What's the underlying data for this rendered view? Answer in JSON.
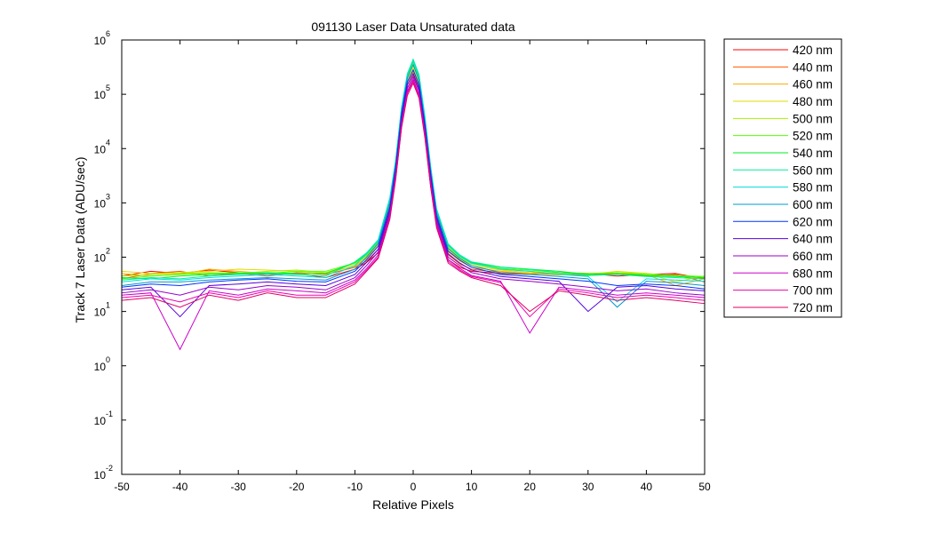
{
  "chart_data": {
    "type": "line",
    "title": "091130 Laser Data  Unsaturated data",
    "xlabel": "Relative Pixels",
    "ylabel": "Track 7 Laser Data (ADU/sec)",
    "xlim": [
      -50,
      50
    ],
    "ylim": [
      0.01,
      1000000
    ],
    "yscale": "log",
    "grid": false,
    "legend_position": "outside-right",
    "x_ticks": [
      "-50",
      "-40",
      "-30",
      "-20",
      "-10",
      "0",
      "10",
      "20",
      "30",
      "40",
      "50"
    ],
    "y_ticks": [
      {
        "base": "10",
        "exp": "-2"
      },
      {
        "base": "10",
        "exp": "-1"
      },
      {
        "base": "10",
        "exp": "0"
      },
      {
        "base": "10",
        "exp": "1"
      },
      {
        "base": "10",
        "exp": "2"
      },
      {
        "base": "10",
        "exp": "3"
      },
      {
        "base": "10",
        "exp": "4"
      },
      {
        "base": "10",
        "exp": "5"
      },
      {
        "base": "10",
        "exp": "6"
      }
    ],
    "x": [
      -50,
      -45,
      -40,
      -35,
      -30,
      -25,
      -20,
      -15,
      -10,
      -8,
      -6,
      -4,
      -3,
      -2,
      -1,
      0,
      1,
      2,
      3,
      4,
      6,
      8,
      10,
      15,
      20,
      25,
      30,
      35,
      40,
      45,
      50
    ],
    "series": [
      {
        "name": "420 nm",
        "color": "#ff0000",
        "values": [
          45,
          55,
          50,
          58,
          52,
          48,
          50,
          42,
          60,
          80,
          120,
          600,
          3000,
          25000,
          110000,
          180000,
          100000,
          18000,
          2000,
          400,
          90,
          65,
          55,
          50,
          48,
          52,
          50,
          45,
          48,
          50,
          40
        ]
      },
      {
        "name": "440 nm",
        "color": "#ff5500",
        "values": [
          40,
          50,
          55,
          45,
          50,
          45,
          52,
          48,
          65,
          85,
          140,
          700,
          3500,
          30000,
          130000,
          220000,
          120000,
          22000,
          2500,
          450,
          110,
          75,
          60,
          52,
          50,
          48,
          46,
          50,
          45,
          48,
          35
        ]
      },
      {
        "name": "460 nm",
        "color": "#ffaa00",
        "values": [
          50,
          45,
          48,
          60,
          55,
          50,
          48,
          52,
          68,
          95,
          160,
          800,
          4000,
          35000,
          150000,
          260000,
          140000,
          25000,
          3000,
          520,
          125,
          85,
          65,
          55,
          50,
          47,
          50,
          52,
          48,
          30,
          40
        ]
      },
      {
        "name": "480 nm",
        "color": "#dddd00",
        "values": [
          55,
          50,
          52,
          55,
          60,
          58,
          55,
          50,
          70,
          100,
          170,
          900,
          4500,
          40000,
          170000,
          300000,
          160000,
          28000,
          3400,
          580,
          140,
          90,
          70,
          58,
          52,
          50,
          48,
          55,
          50,
          35,
          45
        ]
      },
      {
        "name": "500 nm",
        "color": "#aaee00",
        "values": [
          45,
          48,
          50,
          52,
          50,
          55,
          58,
          52,
          75,
          105,
          180,
          1000,
          5000,
          45000,
          190000,
          340000,
          180000,
          32000,
          3800,
          640,
          150,
          95,
          75,
          60,
          55,
          50,
          48,
          52,
          50,
          45,
          42
        ]
      },
      {
        "name": "520 nm",
        "color": "#55ff00",
        "values": [
          40,
          45,
          48,
          50,
          52,
          50,
          55,
          55,
          78,
          110,
          190,
          1100,
          5500,
          50000,
          210000,
          380000,
          200000,
          35000,
          4200,
          700,
          160,
          100,
          78,
          62,
          58,
          52,
          50,
          50,
          48,
          46,
          44
        ]
      },
      {
        "name": "540 nm",
        "color": "#00ee22",
        "values": [
          42,
          40,
          45,
          48,
          50,
          52,
          50,
          50,
          80,
          115,
          200,
          1200,
          6000,
          55000,
          230000,
          420000,
          220000,
          38000,
          4500,
          760,
          170,
          105,
          80,
          65,
          60,
          55,
          48,
          50,
          46,
          44,
          42
        ]
      },
      {
        "name": "560 nm",
        "color": "#00ee99",
        "values": [
          38,
          42,
          40,
          45,
          48,
          50,
          48,
          45,
          82,
          120,
          210,
          1250,
          6200,
          58000,
          240000,
          440000,
          230000,
          40000,
          4700,
          790,
          175,
          110,
          82,
          66,
          60,
          52,
          46,
          48,
          44,
          42,
          40
        ]
      },
      {
        "name": "580 nm",
        "color": "#00dddd",
        "values": [
          35,
          40,
          38,
          42,
          45,
          48,
          45,
          42,
          70,
          115,
          200,
          1200,
          6000,
          55000,
          230000,
          410000,
          210000,
          37000,
          4400,
          750,
          165,
          105,
          78,
          60,
          55,
          48,
          44,
          15,
          40,
          38,
          36
        ]
      },
      {
        "name": "600 nm",
        "color": "#0099cc",
        "values": [
          30,
          35,
          35,
          38,
          40,
          42,
          40,
          38,
          60,
          100,
          180,
          1000,
          5200,
          48000,
          200000,
          350000,
          180000,
          32000,
          3900,
          660,
          145,
          95,
          70,
          52,
          48,
          44,
          40,
          12,
          36,
          34,
          30
        ]
      },
      {
        "name": "620 nm",
        "color": "#0033ff",
        "values": [
          28,
          32,
          30,
          35,
          38,
          40,
          36,
          35,
          55,
          90,
          160,
          850,
          4500,
          42000,
          170000,
          280000,
          150000,
          28000,
          3400,
          580,
          130,
          88,
          65,
          48,
          44,
          40,
          36,
          30,
          32,
          30,
          26
        ]
      },
      {
        "name": "640 nm",
        "color": "#5500dd",
        "values": [
          25,
          28,
          8,
          30,
          32,
          35,
          32,
          30,
          48,
          80,
          140,
          750,
          4000,
          36000,
          150000,
          240000,
          130000,
          24000,
          3000,
          520,
          115,
          78,
          58,
          44,
          40,
          36,
          10,
          28,
          30,
          26,
          24
        ]
      },
      {
        "name": "660 nm",
        "color": "#9900cc",
        "values": [
          22,
          25,
          20,
          28,
          25,
          30,
          28,
          25,
          42,
          70,
          125,
          650,
          3500,
          32000,
          130000,
          210000,
          115000,
          21000,
          2600,
          460,
          100,
          70,
          52,
          40,
          36,
          32,
          28,
          24,
          26,
          22,
          20
        ]
      },
      {
        "name": "680 nm",
        "color": "#cc00cc",
        "values": [
          20,
          22,
          2,
          24,
          20,
          26,
          24,
          22,
          38,
          62,
          110,
          580,
          3100,
          28000,
          115000,
          190000,
          100000,
          19000,
          2300,
          410,
          90,
          62,
          46,
          36,
          4,
          28,
          24,
          20,
          22,
          20,
          18
        ]
      },
      {
        "name": "700 nm",
        "color": "#ee00aa",
        "values": [
          18,
          20,
          15,
          22,
          18,
          24,
          20,
          20,
          35,
          58,
          100,
          540,
          2900,
          26000,
          105000,
          175000,
          92000,
          17500,
          2100,
          380,
          84,
          58,
          44,
          34,
          8,
          26,
          22,
          18,
          20,
          18,
          16
        ]
      },
      {
        "name": "720 nm",
        "color": "#dd0066",
        "values": [
          16,
          18,
          12,
          20,
          16,
          22,
          18,
          18,
          32,
          55,
          95,
          500,
          2700,
          24000,
          95000,
          160000,
          85000,
          16000,
          1950,
          350,
          78,
          55,
          42,
          30,
          10,
          24,
          20,
          16,
          18,
          16,
          14
        ]
      }
    ]
  }
}
